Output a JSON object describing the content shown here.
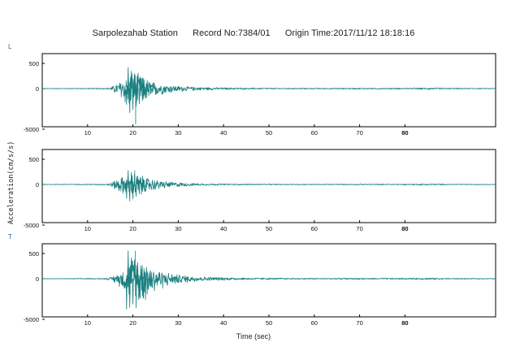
{
  "chart_data": {
    "type": "line",
    "title": "Sarpolezahab Station      Record No:7384/01      Origin Time:2017/11/12 18:18:16",
    "ylabel": "Acceleration(cm/s/s)",
    "xlabel": "Time (sec)",
    "xlim": [
      0,
      100
    ],
    "x_ticks": [
      "10",
      "20",
      "30",
      "40",
      "50",
      "60",
      "70",
      "80"
    ],
    "series_color": "#1a7f7f",
    "panels": [
      {
        "label": "L",
        "yticks": [
          "500",
          "0",
          "-5000"
        ],
        "ylim": [
          -600,
          700
        ],
        "envelope": [
          [
            0,
            4
          ],
          [
            14,
            10
          ],
          [
            15,
            25
          ],
          [
            16,
            80
          ],
          [
            17,
            150
          ],
          [
            18,
            250
          ],
          [
            19,
            340
          ],
          [
            20,
            380
          ],
          [
            21,
            330
          ],
          [
            22,
            280
          ],
          [
            23,
            220
          ],
          [
            24,
            170
          ],
          [
            25,
            130
          ],
          [
            26,
            110
          ],
          [
            27,
            90
          ],
          [
            28,
            80
          ],
          [
            29,
            70
          ],
          [
            30,
            60
          ],
          [
            32,
            45
          ],
          [
            35,
            30
          ],
          [
            40,
            20
          ],
          [
            45,
            15
          ],
          [
            50,
            12
          ],
          [
            60,
            10
          ],
          [
            80,
            12
          ],
          [
            86,
            18
          ],
          [
            90,
            10
          ],
          [
            100,
            6
          ]
        ],
        "peak": {
          "x": 20.6,
          "y": -560
        },
        "values": [
          -250,
          420,
          -380,
          350,
          -330,
          300,
          -280,
          260,
          -240,
          210,
          -190,
          170,
          -150,
          130,
          -110,
          90,
          -70,
          50,
          -30,
          15
        ]
      },
      {
        "label": "",
        "yticks": [
          "500",
          "0",
          "-5000"
        ],
        "ylim": [
          -600,
          700
        ],
        "envelope": [
          [
            0,
            4
          ],
          [
            14,
            10
          ],
          [
            15,
            30
          ],
          [
            16,
            90
          ],
          [
            17,
            140
          ],
          [
            18,
            180
          ],
          [
            19,
            200
          ],
          [
            20,
            230
          ],
          [
            21,
            210
          ],
          [
            22,
            190
          ],
          [
            23,
            160
          ],
          [
            24,
            130
          ],
          [
            25,
            100
          ],
          [
            26,
            85
          ],
          [
            27,
            70
          ],
          [
            28,
            60
          ],
          [
            30,
            45
          ],
          [
            32,
            30
          ],
          [
            35,
            20
          ],
          [
            40,
            14
          ],
          [
            50,
            10
          ],
          [
            60,
            8
          ],
          [
            80,
            10
          ],
          [
            86,
            15
          ],
          [
            90,
            8
          ],
          [
            100,
            5
          ]
        ],
        "peak": {
          "x": 20.4,
          "y": 280
        },
        "values": [
          -220,
          280,
          -260,
          240,
          -230,
          210,
          -190,
          170,
          -150,
          130,
          -110,
          90,
          -70,
          50,
          -30,
          15
        ]
      },
      {
        "label": "T",
        "yticks": [
          "500",
          "0",
          "-5000"
        ],
        "ylim": [
          -600,
          700
        ],
        "envelope": [
          [
            0,
            4
          ],
          [
            14,
            10
          ],
          [
            15,
            30
          ],
          [
            16,
            80
          ],
          [
            17,
            130
          ],
          [
            18,
            200
          ],
          [
            19,
            350
          ],
          [
            20,
            520
          ],
          [
            21,
            480
          ],
          [
            22,
            420
          ],
          [
            23,
            380
          ],
          [
            24,
            300
          ],
          [
            25,
            230
          ],
          [
            26,
            190
          ],
          [
            27,
            150
          ],
          [
            28,
            130
          ],
          [
            29,
            110
          ],
          [
            30,
            90
          ],
          [
            32,
            70
          ],
          [
            35,
            45
          ],
          [
            40,
            30
          ],
          [
            45,
            20
          ],
          [
            50,
            16
          ],
          [
            60,
            12
          ],
          [
            80,
            14
          ],
          [
            86,
            18
          ],
          [
            90,
            10
          ],
          [
            100,
            6
          ]
        ],
        "peak": {
          "x": 20.5,
          "y": 560
        },
        "values": [
          -480,
          560,
          -450,
          420,
          -400,
          380,
          -350,
          320,
          -290,
          260,
          -230,
          200,
          -170,
          140,
          -110,
          80,
          -50,
          20
        ]
      }
    ]
  }
}
